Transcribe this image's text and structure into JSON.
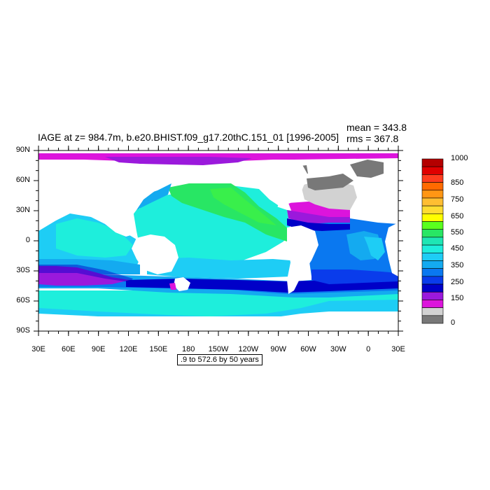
{
  "title": "IAGE at z= 984.7m, b.e20.BHIST.f09_g17.20thC.151_01 [1996-2005]",
  "stats": {
    "mean": "mean = 343.8",
    "rms": "rms = 367.8"
  },
  "lat_ticks": [
    "90N",
    "60N",
    "30N",
    "0",
    "30S",
    "60S",
    "90S"
  ],
  "lon_ticks": [
    "30E",
    "60E",
    "90E",
    "120E",
    "150E",
    "180",
    "150W",
    "120W",
    "90W",
    "60W",
    "30W",
    "0",
    "30E"
  ],
  "note": ".9 to 572.6 by 50 years",
  "colorbar": {
    "labels": [
      "1000",
      "850",
      "750",
      "650",
      "550",
      "450",
      "350",
      "250",
      "150",
      "0"
    ],
    "colors": [
      "#b40000",
      "#e00000",
      "#ff3c1e",
      "#ff6a00",
      "#ff9614",
      "#ffbe32",
      "#ffdc32",
      "#ffff00",
      "#5aff1e",
      "#28e664",
      "#1ee6b4",
      "#1eeedc",
      "#1ecdf5",
      "#14aaf0",
      "#0a78f0",
      "#0a3ceb",
      "#0000c8",
      "#9b19dc",
      "#dc14dc",
      "#d2d2d2",
      "#787878"
    ]
  }
}
